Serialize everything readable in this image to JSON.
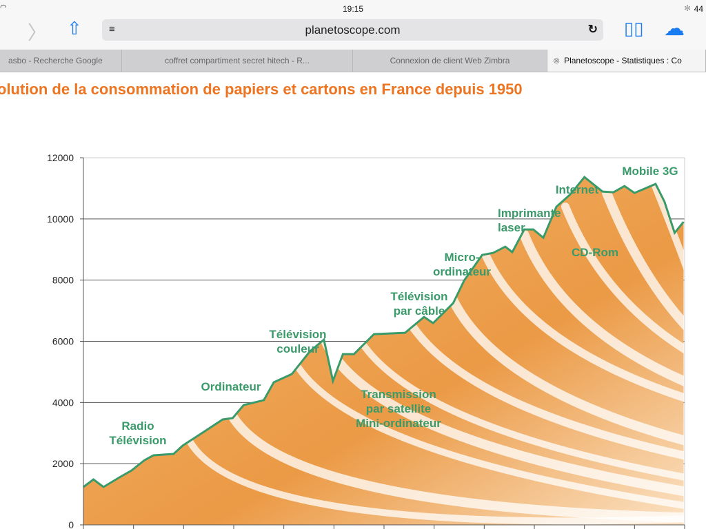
{
  "status": {
    "time": "19:15",
    "battery": "44"
  },
  "toolbar": {
    "url": "planetoscope.com"
  },
  "tabs": [
    {
      "label": "asbo - Recherche Google"
    },
    {
      "label": "coffret compartiment secret hitech - R..."
    },
    {
      "label": "Connexion de client Web Zimbra"
    },
    {
      "label": "Planetoscope - Statistiques : Co"
    }
  ],
  "page": {
    "title": "olution de la consommation de papiers et cartons en France depuis 1950"
  },
  "chart_data": {
    "type": "area",
    "title": "olution de la consommation de papiers et cartons en France depuis 1950",
    "xlabel": "",
    "ylabel": "",
    "ylim": [
      0,
      12000
    ],
    "xlim": [
      1950,
      2010
    ],
    "yticks": [
      "0",
      "2000",
      "4000",
      "6000",
      "8000",
      "10000",
      "12000"
    ],
    "grid": true,
    "series": [
      {
        "name": "Consommation",
        "points": [
          [
            1950.0,
            1238
          ],
          [
            1951.0,
            1486
          ],
          [
            1952.0,
            1238
          ],
          [
            1953.6,
            1553
          ],
          [
            1954.8,
            1778
          ],
          [
            1956.1,
            2116
          ],
          [
            1957.0,
            2273
          ],
          [
            1959.0,
            2319
          ],
          [
            1959.9,
            2589
          ],
          [
            1961.8,
            2994
          ],
          [
            1963.9,
            3444
          ],
          [
            1964.9,
            3489
          ],
          [
            1966.0,
            3917
          ],
          [
            1968.0,
            4074
          ],
          [
            1969.0,
            4660
          ],
          [
            1970.8,
            4930
          ],
          [
            1972.6,
            5672
          ],
          [
            1974.0,
            6055
          ],
          [
            1974.9,
            4705
          ],
          [
            1975.9,
            5582
          ],
          [
            1977.0,
            5582
          ],
          [
            1979.0,
            6235
          ],
          [
            1982.1,
            6280
          ],
          [
            1984.0,
            6798
          ],
          [
            1984.9,
            6595
          ],
          [
            1986.9,
            7248
          ],
          [
            1988.0,
            7991
          ],
          [
            1989.8,
            8824
          ],
          [
            1990.9,
            8891
          ],
          [
            1992.1,
            9094
          ],
          [
            1992.8,
            8914
          ],
          [
            1994.0,
            9657
          ],
          [
            1994.9,
            9657
          ],
          [
            1995.9,
            9387
          ],
          [
            1997.2,
            10399
          ],
          [
            1998.6,
            10805
          ],
          [
            2000.0,
            11368
          ],
          [
            2001.8,
            10895
          ],
          [
            2002.9,
            10872
          ],
          [
            2004.0,
            11075
          ],
          [
            2005.0,
            10850
          ],
          [
            2007.1,
            11142
          ],
          [
            2008.0,
            10557
          ],
          [
            2009.0,
            9544
          ],
          [
            2009.9,
            9904
          ]
        ]
      }
    ],
    "annotations": [
      {
        "lines": [
          "Radio",
          "Télévision"
        ]
      },
      {
        "lines": [
          "Ordinateur"
        ]
      },
      {
        "lines": [
          "Télévision",
          "couleur"
        ]
      },
      {
        "lines": [
          "Transmission",
          "par satellite",
          "Mini-ordinateur"
        ]
      },
      {
        "lines": [
          "Télévision",
          "par câble"
        ]
      },
      {
        "lines": [
          "Micro-",
          "ordinateur"
        ]
      },
      {
        "lines": [
          "Imprimante",
          "laser"
        ]
      },
      {
        "lines": [
          "Internet"
        ]
      },
      {
        "lines": [
          "CD-Rom"
        ]
      },
      {
        "lines": [
          "Mobile 3G"
        ]
      }
    ],
    "colors": {
      "line": "#3a9a6a",
      "fill_dark": "#eb9a45",
      "fill_light": "#fbe2c4"
    }
  }
}
